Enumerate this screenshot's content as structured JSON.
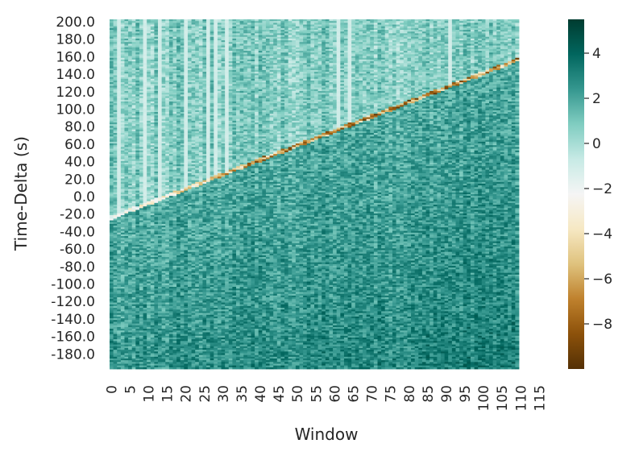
{
  "chart_data": {
    "type": "heatmap",
    "title": "",
    "xlabel": "Window",
    "ylabel": "Time-Delta (s)",
    "x_tick_labels": [
      "0",
      "5",
      "10",
      "15",
      "20",
      "25",
      "30",
      "35",
      "40",
      "45",
      "50",
      "55",
      "60",
      "65",
      "70",
      "75",
      "80",
      "85",
      "90",
      "95",
      "100",
      "105",
      "110",
      "115"
    ],
    "y_tick_labels": [
      "200.0",
      "180.0",
      "160.0",
      "140.0",
      "120.0",
      "100.0",
      "80.0",
      "60.0",
      "40.0",
      "20.0",
      "0.0",
      "-20.0",
      "-40.0",
      "-60.0",
      "-80.0",
      "-100.0",
      "-120.0",
      "-140.0",
      "-160.0",
      "-180.0"
    ],
    "n_windows": 110,
    "y_range": [
      -200,
      200
    ],
    "colormap": "BrBG",
    "colorbar": {
      "range": [
        -10,
        5.5
      ],
      "tick_labels": [
        "4",
        "2",
        "0",
        "−2",
        "−4",
        "−6",
        "−8"
      ],
      "tick_values": [
        4,
        2,
        0,
        -2,
        -4,
        -6,
        -8
      ]
    },
    "ridge": {
      "description_values": "dark brown diagonal band of strongly negative values",
      "start": {
        "window": 0,
        "delta": -27
      },
      "end": {
        "window": 110,
        "delta": 155
      }
    },
    "value_levels": {
      "background_above_ridge": 0.5,
      "background_below_ridge": 1.8,
      "ridge_min": -9.5
    }
  }
}
